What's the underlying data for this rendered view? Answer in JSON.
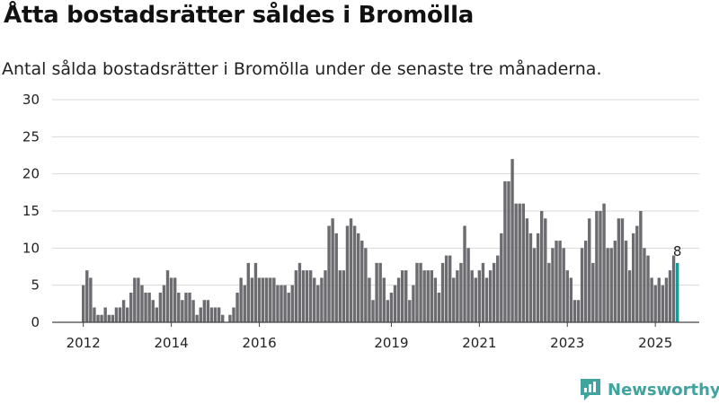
{
  "title": "Åtta bostadsrätter såldes i Bromölla",
  "subtitle": "Antal sålda bostadsrätter i Bromölla under de senaste tre månaderna.",
  "brand": {
    "name": "Newsworthy",
    "color": "#3fa39e"
  },
  "colors": {
    "bar": "#6b6b70",
    "highlight": "#1a9a9a",
    "grid": "#d8d8d8"
  },
  "chart_data": {
    "type": "bar",
    "title": "",
    "xlabel": "",
    "ylabel": "",
    "ylim": [
      0,
      30
    ],
    "yticks": [
      "0",
      "5",
      "10",
      "15",
      "20",
      "25",
      "30"
    ],
    "xticks": [
      "2012",
      "2014",
      "2016",
      "2019",
      "2021",
      "2023",
      "2025"
    ],
    "xtick_positions": [
      0,
      24,
      48,
      84,
      108,
      132,
      156
    ],
    "grid": true,
    "legend": "none",
    "highlight_label": "8",
    "values": [
      5,
      7,
      6,
      2,
      1,
      1,
      2,
      1,
      1,
      2,
      2,
      3,
      2,
      4,
      6,
      6,
      5,
      4,
      4,
      3,
      2,
      4,
      5,
      7,
      6,
      6,
      4,
      3,
      4,
      4,
      3,
      1,
      2,
      3,
      3,
      2,
      2,
      2,
      1,
      0,
      1,
      2,
      4,
      6,
      5,
      8,
      6,
      8,
      6,
      6,
      6,
      6,
      6,
      5,
      5,
      5,
      4,
      5,
      7,
      8,
      7,
      7,
      7,
      6,
      5,
      6,
      7,
      13,
      14,
      12,
      7,
      7,
      13,
      14,
      13,
      12,
      11,
      10,
      6,
      3,
      8,
      8,
      6,
      3,
      4,
      5,
      6,
      7,
      7,
      3,
      5,
      8,
      8,
      7,
      7,
      7,
      6,
      4,
      8,
      9,
      9,
      6,
      7,
      8,
      13,
      10,
      7,
      6,
      7,
      8,
      6,
      7,
      8,
      9,
      12,
      19,
      19,
      22,
      16,
      16,
      16,
      14,
      12,
      10,
      12,
      15,
      14,
      8,
      10,
      11,
      11,
      10,
      7,
      6,
      3,
      3,
      10,
      11,
      14,
      8,
      15,
      15,
      16,
      10,
      10,
      11,
      14,
      14,
      11,
      7,
      12,
      13,
      15,
      10,
      9,
      6,
      5,
      6,
      5,
      6,
      7,
      9,
      8
    ]
  }
}
